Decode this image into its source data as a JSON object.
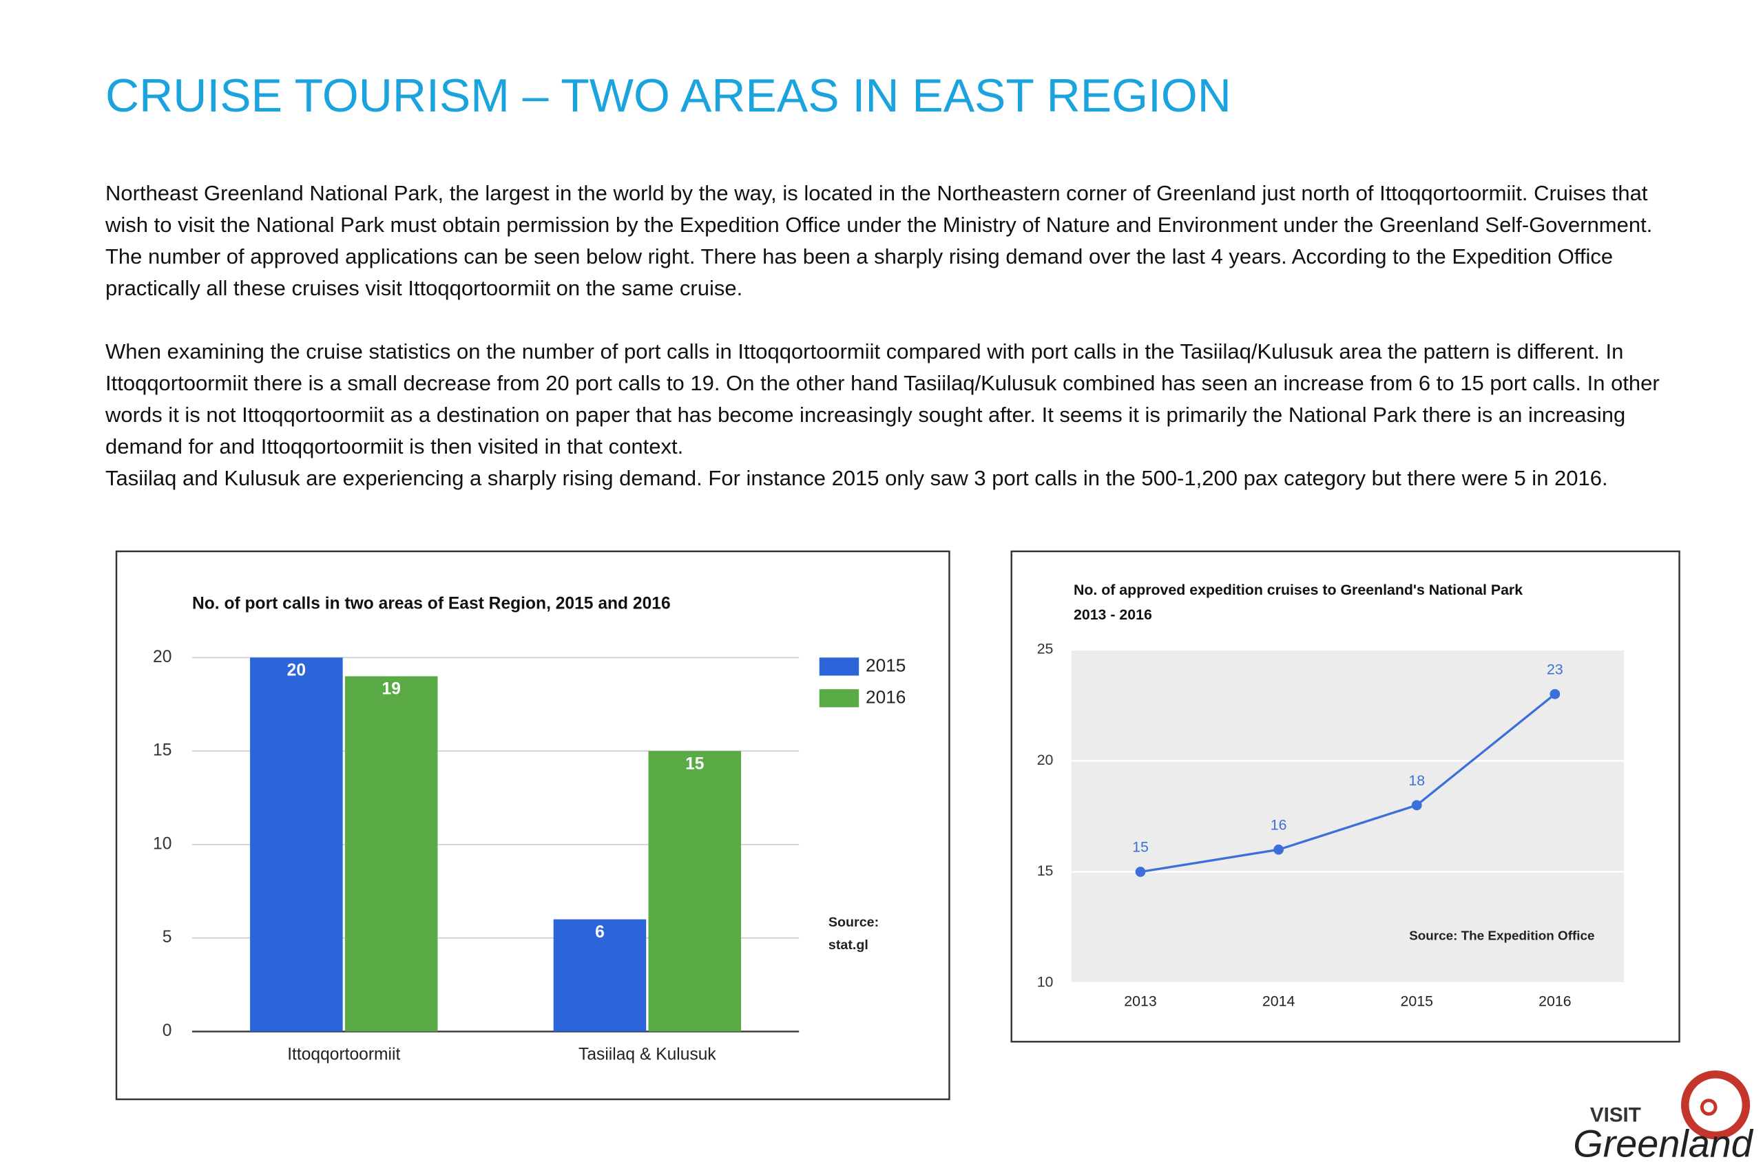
{
  "title": "CRUISE TOURISM – TWO AREAS IN EAST REGION",
  "paragraphs": [
    "Northeast Greenland National Park, the largest in the world by the way, is located in the Northeastern corner of Greenland just north of Ittoqqortoormiit. Cruises that wish to visit the National Park must obtain permission by the Expedition Office under the Ministry of Nature and Environment under the Greenland Self-Government.  The number of approved applications can be seen below right. There has been a sharply rising demand over the last 4 years. According to the Expedition Office practically all these cruises visit Ittoqqortoormiit on the same cruise.",
    "When examining the cruise statistics on the number of port calls in Ittoqqortoormiit compared with port calls in the Tasiilaq/Kulusuk area the pattern is different. In Ittoqqortoormiit there is a small decrease from 20 port calls to 19. On the other hand Tasiilaq/Kulusuk combined has seen an increase from 6 to 15 port calls. In other words it is not Ittoqqortoormiit as a destination on paper that has become increasingly sought after. It seems it is primarily the National Park there is an increasing demand for and Ittoqqortoormiit is then visited in that context.",
    "Tasiilaq and Kulusuk are experiencing a sharply rising demand. For instance 2015 only saw 3 port calls in the 500-1,200 pax category but there were 5 in 2016."
  ],
  "chart_data": [
    {
      "type": "bar",
      "title": "No. of port calls in two areas of East Region, 2015 and 2016",
      "categories": [
        "Ittoqqortoormiit",
        "Tasiilaq & Kulusuk"
      ],
      "series": [
        {
          "name": "2015",
          "color": "#2b65d9",
          "values": [
            20,
            6
          ]
        },
        {
          "name": "2016",
          "color": "#5aab45",
          "values": [
            19,
            15
          ]
        }
      ],
      "ylim": [
        0,
        20
      ],
      "yticks": [
        0,
        5,
        10,
        15,
        20
      ],
      "grid": true,
      "annotations": [
        "Source:",
        "stat.gl"
      ]
    },
    {
      "type": "line",
      "title": "No. of approved expedition cruises to Greenland's National Park",
      "subtitle": "2013 - 2016",
      "x": [
        "2013",
        "2014",
        "2015",
        "2016"
      ],
      "series": [
        {
          "name": "Approved cruises",
          "color": "#3d6fdb",
          "values": [
            15,
            16,
            18,
            23
          ]
        }
      ],
      "ylim": [
        10,
        25
      ],
      "yticks": [
        10,
        15,
        20,
        25
      ],
      "grid": true,
      "annotations": [
        "Source: The Expedition Office"
      ]
    }
  ],
  "logo": {
    "top": "VISIT",
    "bottom": "Greenland"
  }
}
